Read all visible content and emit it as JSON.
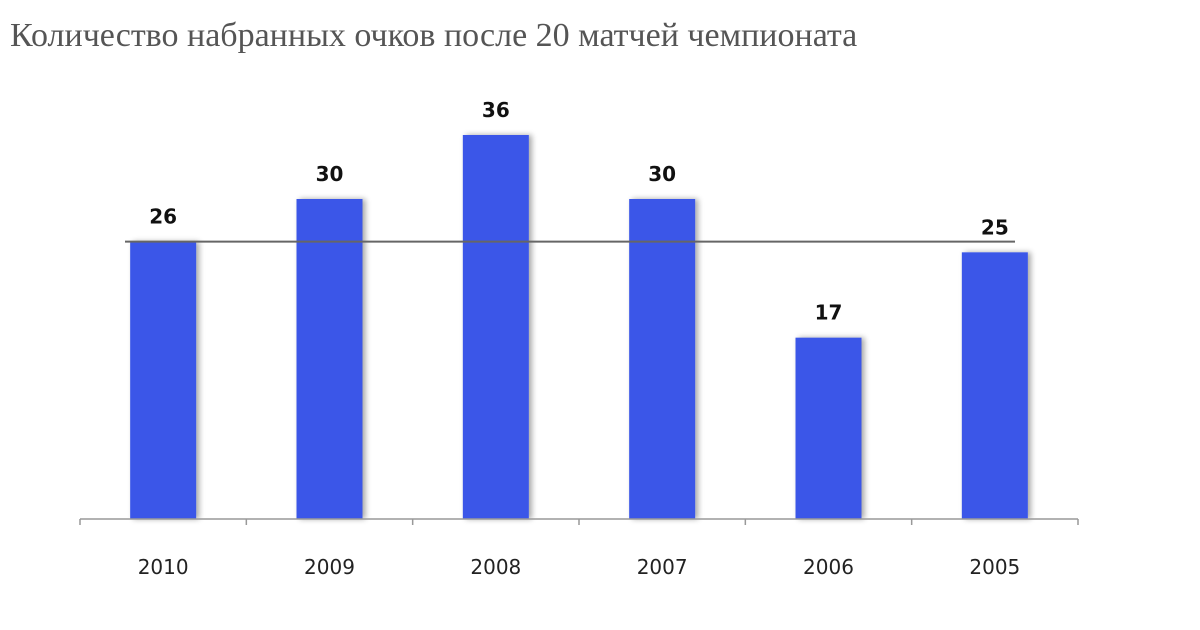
{
  "chart_data": {
    "type": "bar",
    "title": "Количество набранных очков после 20 матчей чемпионата",
    "categories": [
      "2010",
      "2009",
      "2008",
      "2007",
      "2006",
      "2005"
    ],
    "values": [
      26,
      30,
      36,
      30,
      17,
      25
    ],
    "color": "#3a57e8",
    "ylim": [
      0,
      36
    ],
    "reference_line": 26
  }
}
